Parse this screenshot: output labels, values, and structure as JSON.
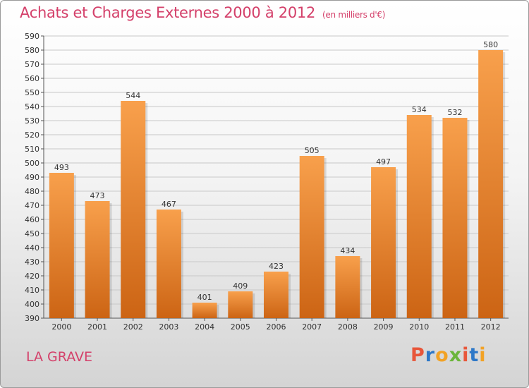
{
  "header": {
    "title": "Achats et Charges Externes 2000 à 2012",
    "unit": "(en milliers d'€)"
  },
  "footer": {
    "place": "LA GRAVE",
    "logo": "Proxiti",
    "logo_colors": [
      "#e8563a",
      "#2e78c8",
      "#f2a225",
      "#6bb53a",
      "#e8563a",
      "#2e78c8",
      "#f2a225"
    ]
  },
  "colors": {
    "bar_light": "#f8a04c",
    "bar_dark": "#cc6414",
    "title": "#d4406a",
    "grid": "#c8c8c8"
  },
  "chart_data": {
    "type": "bar",
    "title": "Achats et Charges Externes 2000 à 2012",
    "subtitle": "(en milliers d'€)",
    "xlabel": "",
    "ylabel": "",
    "categories": [
      "2000",
      "2001",
      "2002",
      "2003",
      "2004",
      "2005",
      "2006",
      "2007",
      "2008",
      "2009",
      "2010",
      "2011",
      "2012"
    ],
    "values": [
      493,
      473,
      544,
      467,
      401,
      409,
      423,
      505,
      434,
      497,
      534,
      532,
      580
    ],
    "ylim": [
      390,
      590
    ],
    "ytick_step": 10,
    "grid": true,
    "legend": "none"
  }
}
